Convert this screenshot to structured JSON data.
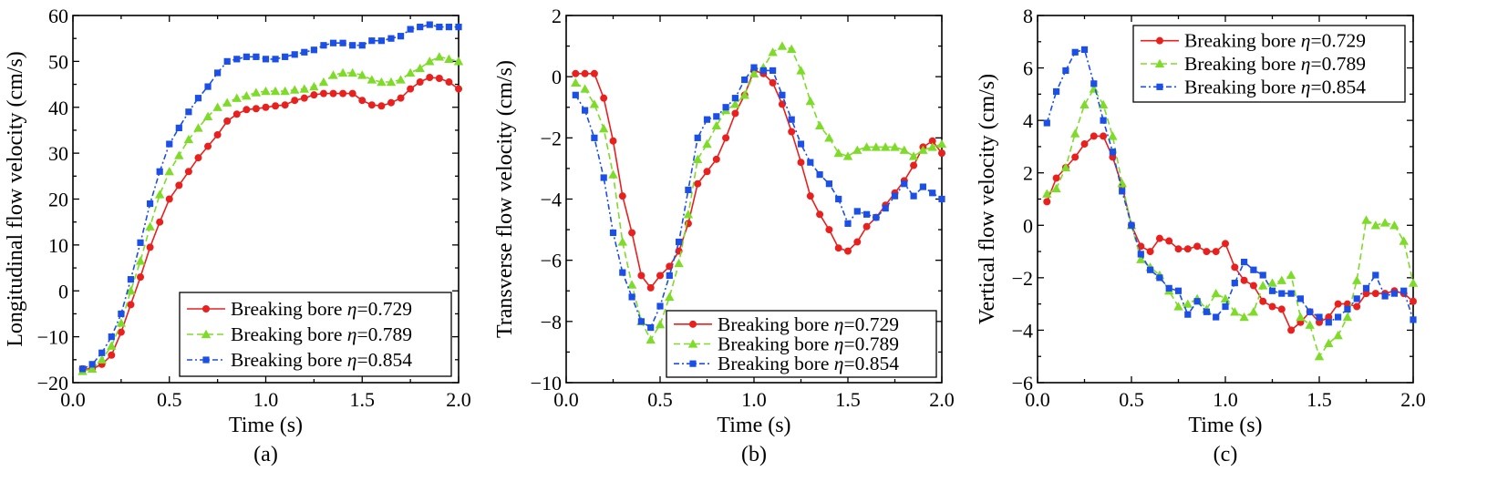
{
  "chart_data": [
    {
      "type": "line",
      "panel_label": "(a)",
      "xlabel": "Time (s)",
      "ylabel": "Longitudinal flow velocity (cm/s)",
      "xlim": [
        0,
        2.0
      ],
      "ylim": [
        -20,
        60
      ],
      "xticks": [
        "0.0",
        "0.5",
        "1.0",
        "1.5",
        "2.0"
      ],
      "yticks": [
        "-20",
        "-10",
        "0",
        "10",
        "20",
        "30",
        "40",
        "50",
        "60"
      ],
      "legend_placement": "bottom-right",
      "series": [
        {
          "name_text": "Breaking bore ",
          "name_symbol": "η",
          "name_value": "=0.729",
          "color": "#e8201e",
          "marker": "circle",
          "dash": "solid",
          "x": [
            0.05,
            0.1,
            0.15,
            0.2,
            0.25,
            0.3,
            0.35,
            0.4,
            0.45,
            0.5,
            0.55,
            0.6,
            0.65,
            0.7,
            0.75,
            0.8,
            0.85,
            0.9,
            0.95,
            1.0,
            1.05,
            1.1,
            1.15,
            1.2,
            1.25,
            1.3,
            1.35,
            1.4,
            1.45,
            1.5,
            1.55,
            1.6,
            1.65,
            1.7,
            1.75,
            1.8,
            1.85,
            1.9,
            1.95,
            2.0
          ],
          "y": [
            -17,
            -17,
            -16,
            -14,
            -9,
            -3,
            3,
            9.5,
            15,
            20,
            23,
            26,
            29,
            31.5,
            34,
            37,
            38.5,
            39.5,
            39.7,
            40,
            40.3,
            40.5,
            41.5,
            42,
            42.7,
            43,
            43,
            43,
            43,
            41.5,
            40.5,
            40.3,
            41,
            42,
            44,
            45.5,
            46.5,
            46.3,
            45.5,
            44
          ]
        },
        {
          "name_text": "Breaking bore ",
          "name_symbol": "η",
          "name_value": "=0.789",
          "color": "#7fdb2a",
          "marker": "triangle",
          "dash": "dashed",
          "x": [
            0.05,
            0.1,
            0.15,
            0.2,
            0.25,
            0.3,
            0.35,
            0.4,
            0.45,
            0.5,
            0.55,
            0.6,
            0.65,
            0.7,
            0.75,
            0.8,
            0.85,
            0.9,
            0.95,
            1.0,
            1.05,
            1.1,
            1.15,
            1.2,
            1.25,
            1.3,
            1.35,
            1.4,
            1.45,
            1.5,
            1.55,
            1.6,
            1.65,
            1.7,
            1.75,
            1.8,
            1.85,
            1.9,
            1.95,
            2.0
          ],
          "y": [
            -17.5,
            -17,
            -15,
            -12,
            -7,
            0,
            6.5,
            14,
            21,
            26,
            29.5,
            33,
            35.5,
            38,
            40,
            41,
            42,
            42.5,
            43.2,
            43.5,
            43.5,
            43.5,
            43.8,
            44,
            44.5,
            45.5,
            47,
            47.5,
            47.5,
            47,
            46,
            45.5,
            45.5,
            46,
            47.5,
            48.5,
            50,
            51,
            50.5,
            50
          ]
        },
        {
          "name_text": "Breaking bore ",
          "name_symbol": "η",
          "name_value": "=0.854",
          "color": "#1b4fe6",
          "marker": "square",
          "dash": "dashdot",
          "x": [
            0.05,
            0.1,
            0.15,
            0.2,
            0.25,
            0.3,
            0.35,
            0.4,
            0.45,
            0.5,
            0.55,
            0.6,
            0.65,
            0.7,
            0.75,
            0.8,
            0.85,
            0.9,
            0.95,
            1.0,
            1.05,
            1.1,
            1.15,
            1.2,
            1.25,
            1.3,
            1.35,
            1.4,
            1.45,
            1.5,
            1.55,
            1.6,
            1.65,
            1.7,
            1.75,
            1.8,
            1.85,
            1.9,
            1.95,
            2.0
          ],
          "y": [
            -17,
            -16,
            -13.5,
            -10,
            -5,
            2.5,
            10.5,
            19,
            26,
            32,
            35.5,
            39,
            42,
            44.5,
            47.5,
            50,
            50.5,
            51,
            51,
            50.5,
            50.5,
            51,
            51.5,
            52,
            52.5,
            53.5,
            54,
            54,
            53.5,
            53.5,
            54.5,
            54.5,
            55,
            55.5,
            57,
            57.5,
            58,
            57.5,
            57.5,
            57.5
          ]
        }
      ]
    },
    {
      "type": "line",
      "panel_label": "(b)",
      "xlabel": "Time (s)",
      "ylabel": "Transverse flow velocity (cm/s)",
      "xlim": [
        0,
        2.0
      ],
      "ylim": [
        -10,
        2
      ],
      "xticks": [
        "0.0",
        "0.5",
        "1.0",
        "1.5",
        "2.0"
      ],
      "yticks": [
        "-10",
        "-8",
        "-6",
        "-4",
        "-2",
        "0",
        "2"
      ],
      "legend_placement": "bottom-right",
      "series": [
        {
          "name_text": "Breaking bore ",
          "name_symbol": "η",
          "name_value": "=0.729",
          "color": "#e8201e",
          "marker": "circle",
          "dash": "solid",
          "x": [
            0.05,
            0.1,
            0.15,
            0.2,
            0.25,
            0.3,
            0.35,
            0.4,
            0.45,
            0.5,
            0.55,
            0.6,
            0.65,
            0.7,
            0.75,
            0.8,
            0.85,
            0.9,
            0.95,
            1.0,
            1.05,
            1.1,
            1.15,
            1.2,
            1.25,
            1.3,
            1.35,
            1.4,
            1.45,
            1.5,
            1.55,
            1.6,
            1.65,
            1.7,
            1.75,
            1.8,
            1.85,
            1.9,
            1.95,
            2.0
          ],
          "y": [
            0.1,
            0.1,
            0.1,
            -0.7,
            -2.1,
            -3.9,
            -5.1,
            -6.5,
            -6.9,
            -6.5,
            -6.2,
            -5.7,
            -4.8,
            -3.5,
            -3.1,
            -2.7,
            -2.0,
            -1.2,
            -0.6,
            0.2,
            0.1,
            -0.2,
            -0.9,
            -1.8,
            -2.8,
            -3.9,
            -4.5,
            -5.0,
            -5.6,
            -5.7,
            -5.4,
            -4.9,
            -4.6,
            -4.2,
            -3.8,
            -3.4,
            -2.9,
            -2.3,
            -2.1,
            -2.5
          ]
        },
        {
          "name_text": "Breaking bore ",
          "name_symbol": "η",
          "name_value": "=0.789",
          "color": "#7fdb2a",
          "marker": "triangle",
          "dash": "dashed",
          "x": [
            0.05,
            0.1,
            0.15,
            0.2,
            0.25,
            0.3,
            0.35,
            0.4,
            0.45,
            0.5,
            0.55,
            0.6,
            0.65,
            0.7,
            0.75,
            0.8,
            0.85,
            0.9,
            0.95,
            1.0,
            1.05,
            1.1,
            1.15,
            1.2,
            1.25,
            1.3,
            1.35,
            1.4,
            1.45,
            1.5,
            1.55,
            1.6,
            1.65,
            1.7,
            1.75,
            1.8,
            1.85,
            1.9,
            1.95,
            2.0
          ],
          "y": [
            -0.2,
            -0.4,
            -0.9,
            -1.7,
            -3.2,
            -5.4,
            -6.8,
            -8.0,
            -8.6,
            -8.1,
            -7.2,
            -6.1,
            -4.5,
            -2.7,
            -2.2,
            -1.6,
            -1.1,
            -0.9,
            -0.6,
            0.1,
            0.3,
            0.8,
            1.0,
            0.9,
            0.2,
            -0.8,
            -1.6,
            -2.0,
            -2.5,
            -2.6,
            -2.4,
            -2.3,
            -2.3,
            -2.3,
            -2.3,
            -2.4,
            -2.6,
            -2.4,
            -2.3,
            -2.2
          ]
        },
        {
          "name_text": "Breaking bore ",
          "name_symbol": "η",
          "name_value": "=0.854",
          "color": "#1b4fe6",
          "marker": "square",
          "dash": "dashdot",
          "x": [
            0.05,
            0.1,
            0.15,
            0.2,
            0.25,
            0.3,
            0.35,
            0.4,
            0.45,
            0.5,
            0.55,
            0.6,
            0.65,
            0.7,
            0.75,
            0.8,
            0.85,
            0.9,
            0.95,
            1.0,
            1.05,
            1.1,
            1.15,
            1.2,
            1.25,
            1.3,
            1.35,
            1.4,
            1.45,
            1.5,
            1.55,
            1.6,
            1.65,
            1.7,
            1.75,
            1.8,
            1.85,
            1.9,
            1.95,
            2.0
          ],
          "y": [
            -0.6,
            -1.1,
            -2.0,
            -3.3,
            -5.1,
            -6.4,
            -7.2,
            -8.0,
            -8.2,
            -7.5,
            -6.5,
            -5.4,
            -3.7,
            -2.0,
            -1.4,
            -1.3,
            -1.0,
            -0.7,
            -0.1,
            0.3,
            0.2,
            0.2,
            -0.6,
            -1.4,
            -2.2,
            -2.8,
            -3.2,
            -3.5,
            -4.0,
            -4.8,
            -4.4,
            -4.5,
            -4.6,
            -4.3,
            -3.9,
            -3.5,
            -3.9,
            -3.6,
            -3.8,
            -4.0
          ]
        }
      ]
    },
    {
      "type": "line",
      "panel_label": "(c)",
      "xlabel": "Time (s)",
      "ylabel": "Vertical flow velocity (cm/s)",
      "xlim": [
        0,
        2.0
      ],
      "ylim": [
        -6,
        8
      ],
      "xticks": [
        "0.0",
        "0.5",
        "1.0",
        "1.5",
        "2.0"
      ],
      "yticks": [
        "-6",
        "-4",
        "-2",
        "0",
        "2",
        "4",
        "6",
        "8"
      ],
      "legend_placement": "top-right",
      "series": [
        {
          "name_text": "Breaking bore ",
          "name_symbol": "η",
          "name_value": "=0.729",
          "color": "#e8201e",
          "marker": "circle",
          "dash": "solid",
          "x": [
            0.05,
            0.1,
            0.15,
            0.2,
            0.25,
            0.3,
            0.35,
            0.4,
            0.45,
            0.5,
            0.55,
            0.6,
            0.65,
            0.7,
            0.75,
            0.8,
            0.85,
            0.9,
            0.95,
            1.0,
            1.05,
            1.1,
            1.15,
            1.2,
            1.25,
            1.3,
            1.35,
            1.4,
            1.45,
            1.5,
            1.55,
            1.6,
            1.65,
            1.7,
            1.75,
            1.8,
            1.85,
            1.9,
            1.95,
            2.0
          ],
          "y": [
            0.9,
            1.8,
            2.2,
            2.6,
            3.1,
            3.4,
            3.4,
            2.6,
            1.5,
            0.0,
            -0.8,
            -1.0,
            -0.5,
            -0.6,
            -0.9,
            -0.9,
            -0.8,
            -1.0,
            -1.0,
            -0.7,
            -1.6,
            -2.1,
            -2.3,
            -2.9,
            -3.1,
            -3.2,
            -4.0,
            -3.7,
            -3.3,
            -3.7,
            -3.5,
            -3.0,
            -3.0,
            -3.1,
            -2.6,
            -2.6,
            -2.6,
            -2.5,
            -2.6,
            -2.9
          ]
        },
        {
          "name_text": "Breaking bore ",
          "name_symbol": "η",
          "name_value": "=0.789",
          "color": "#7fdb2a",
          "marker": "triangle",
          "dash": "dashed",
          "x": [
            0.05,
            0.1,
            0.15,
            0.2,
            0.25,
            0.3,
            0.35,
            0.4,
            0.45,
            0.5,
            0.55,
            0.6,
            0.65,
            0.7,
            0.75,
            0.8,
            0.85,
            0.9,
            0.95,
            1.0,
            1.05,
            1.1,
            1.15,
            1.2,
            1.25,
            1.3,
            1.35,
            1.4,
            1.45,
            1.5,
            1.55,
            1.6,
            1.65,
            1.7,
            1.75,
            1.8,
            1.85,
            1.9,
            1.95,
            2.0
          ],
          "y": [
            1.2,
            1.4,
            2.2,
            3.5,
            4.6,
            5.2,
            4.6,
            3.4,
            1.6,
            0.0,
            -1.3,
            -1.6,
            -1.9,
            -2.5,
            -3.1,
            -3.0,
            -2.8,
            -3.2,
            -2.6,
            -2.8,
            -3.3,
            -3.5,
            -3.3,
            -2.3,
            -2.2,
            -2.1,
            -1.9,
            -3.5,
            -3.8,
            -5.0,
            -4.5,
            -4.2,
            -3.5,
            -2.1,
            0.2,
            0.0,
            0.1,
            0.0,
            -0.6,
            -2.2
          ]
        },
        {
          "name_text": "Breaking bore ",
          "name_symbol": "η",
          "name_value": "=0.854",
          "color": "#1b4fe6",
          "marker": "square",
          "dash": "dashdot",
          "x": [
            0.05,
            0.1,
            0.15,
            0.2,
            0.25,
            0.3,
            0.35,
            0.4,
            0.45,
            0.5,
            0.55,
            0.6,
            0.65,
            0.7,
            0.75,
            0.8,
            0.85,
            0.9,
            0.95,
            1.0,
            1.05,
            1.1,
            1.15,
            1.2,
            1.25,
            1.3,
            1.35,
            1.4,
            1.45,
            1.5,
            1.55,
            1.6,
            1.65,
            1.7,
            1.75,
            1.8,
            1.85,
            1.9,
            1.95,
            2.0
          ],
          "y": [
            3.9,
            5.1,
            5.9,
            6.6,
            6.7,
            5.4,
            4.0,
            2.8,
            1.3,
            0.0,
            -1.1,
            -1.7,
            -2.0,
            -2.4,
            -2.5,
            -3.4,
            -2.9,
            -3.3,
            -3.5,
            -3.1,
            -2.2,
            -1.4,
            -1.7,
            -1.9,
            -2.5,
            -2.6,
            -2.6,
            -2.8,
            -3.3,
            -3.5,
            -3.7,
            -3.5,
            -3.2,
            -2.8,
            -2.4,
            -1.9,
            -2.7,
            -2.6,
            -2.5,
            -3.6
          ]
        }
      ]
    }
  ]
}
